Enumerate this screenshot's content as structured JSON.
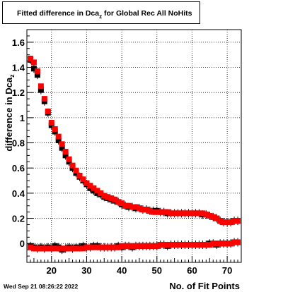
{
  "title": {
    "main": "Fitted difference in Dca",
    "sub": "z",
    "suffix": "  for Global Rec All NoHits"
  },
  "datestamp": "Wed Sep 21 08:26:22 2022",
  "chart_data": {
    "type": "scatter",
    "title": "Fitted difference in Dca_z  for Global Rec All NoHits",
    "xlabel": "No. of Fit Points",
    "ylabel": "difference in Dca_z",
    "xlim": [
      13,
      74
    ],
    "ylim": [
      -0.15,
      1.7
    ],
    "x_ticks": [
      "20",
      "30",
      "40",
      "50",
      "60",
      "70"
    ],
    "y_ticks": [
      "0",
      "0.2",
      "0.4",
      "0.6",
      "0.8",
      "1",
      "1.2",
      "1.4",
      "1.6"
    ],
    "grid": true,
    "series": [
      {
        "color": "#000000",
        "marker": "square",
        "x": [
          14,
          15,
          16,
          17,
          18,
          19,
          20,
          21,
          22,
          23,
          24,
          25,
          26,
          27,
          28,
          29,
          30,
          31,
          32,
          33,
          34,
          35,
          36,
          37,
          38,
          39,
          40,
          41,
          42,
          43,
          44,
          45,
          46,
          47,
          48,
          49,
          50,
          51,
          52,
          53,
          54,
          55,
          56,
          57,
          58,
          59,
          60,
          61,
          62,
          63,
          64,
          65,
          66,
          67,
          68,
          69,
          70,
          71,
          72,
          73
        ],
        "y": [
          1.46,
          1.39,
          1.34,
          1.22,
          1.13,
          1.04,
          0.94,
          0.89,
          0.82,
          0.76,
          0.7,
          0.65,
          0.6,
          0.56,
          0.53,
          0.5,
          0.47,
          0.44,
          0.42,
          0.4,
          0.39,
          0.37,
          0.36,
          0.35,
          0.34,
          0.33,
          0.31,
          0.3,
          0.29,
          0.29,
          0.28,
          0.28,
          0.27,
          0.27,
          0.26,
          0.26,
          0.26,
          0.25,
          0.25,
          0.24,
          0.24,
          0.24,
          0.24,
          0.24,
          0.24,
          0.24,
          0.24,
          0.24,
          0.24,
          0.23,
          0.23,
          0.22,
          0.21,
          0.2,
          0.18,
          0.17,
          0.17,
          0.17,
          0.18,
          0.18
        ]
      },
      {
        "color": "#ff0000",
        "marker": "square",
        "x": [
          14,
          15,
          16,
          17,
          18,
          19,
          20,
          21,
          22,
          23,
          24,
          25,
          26,
          27,
          28,
          29,
          30,
          31,
          32,
          33,
          34,
          35,
          36,
          37,
          38,
          39,
          40,
          41,
          42,
          43,
          44,
          45,
          46,
          47,
          48,
          49,
          50,
          51,
          52,
          53,
          54,
          55,
          56,
          57,
          58,
          59,
          60,
          61,
          62,
          63,
          64,
          65,
          66,
          67,
          68,
          69,
          70,
          71,
          72,
          73
        ],
        "y": [
          1.47,
          1.44,
          1.37,
          1.25,
          1.15,
          1.05,
          0.96,
          0.91,
          0.85,
          0.79,
          0.73,
          0.67,
          0.62,
          0.58,
          0.54,
          0.51,
          0.48,
          0.46,
          0.44,
          0.42,
          0.4,
          0.38,
          0.37,
          0.36,
          0.35,
          0.33,
          0.32,
          0.3,
          0.3,
          0.29,
          0.29,
          0.28,
          0.27,
          0.27,
          0.26,
          0.25,
          0.25,
          0.25,
          0.25,
          0.25,
          0.24,
          0.24,
          0.24,
          0.24,
          0.24,
          0.24,
          0.24,
          0.24,
          0.24,
          0.24,
          0.23,
          0.22,
          0.21,
          0.2,
          0.18,
          0.17,
          0.17,
          0.17,
          0.18,
          0.18
        ]
      },
      {
        "color": "#000000",
        "marker": "square",
        "x": [
          14,
          15,
          16,
          17,
          18,
          19,
          20,
          21,
          22,
          23,
          24,
          25,
          26,
          27,
          28,
          29,
          30,
          31,
          32,
          33,
          34,
          35,
          36,
          37,
          38,
          39,
          40,
          41,
          42,
          43,
          44,
          45,
          46,
          47,
          48,
          49,
          50,
          51,
          52,
          53,
          54,
          55,
          56,
          57,
          58,
          59,
          60,
          61,
          62,
          63,
          64,
          65,
          66,
          67,
          68,
          69,
          70,
          71,
          72,
          73
        ],
        "y": [
          -0.02,
          -0.03,
          -0.04,
          -0.03,
          -0.04,
          -0.03,
          -0.04,
          -0.02,
          -0.03,
          -0.05,
          -0.04,
          -0.03,
          -0.04,
          -0.03,
          -0.03,
          -0.02,
          -0.03,
          -0.03,
          -0.02,
          -0.02,
          -0.03,
          -0.03,
          -0.03,
          -0.03,
          -0.03,
          -0.02,
          -0.03,
          -0.02,
          -0.02,
          -0.03,
          -0.02,
          -0.02,
          -0.02,
          -0.02,
          -0.02,
          -0.02,
          -0.02,
          -0.01,
          -0.01,
          -0.02,
          -0.01,
          -0.01,
          -0.01,
          -0.01,
          -0.01,
          -0.01,
          -0.01,
          -0.01,
          -0.01,
          -0.01,
          -0.01,
          0,
          0,
          -0.01,
          0,
          0,
          0,
          0,
          0.01,
          0.01
        ]
      },
      {
        "color": "#ff0000",
        "marker": "square",
        "x": [
          14,
          15,
          16,
          17,
          18,
          19,
          20,
          21,
          22,
          23,
          24,
          25,
          26,
          27,
          28,
          29,
          30,
          31,
          32,
          33,
          34,
          35,
          36,
          37,
          38,
          39,
          40,
          41,
          42,
          43,
          44,
          45,
          46,
          47,
          48,
          49,
          50,
          51,
          52,
          53,
          54,
          55,
          56,
          57,
          58,
          59,
          60,
          61,
          62,
          63,
          64,
          65,
          66,
          67,
          68,
          69,
          70,
          71,
          72,
          73
        ],
        "y": [
          -0.03,
          -0.04,
          -0.04,
          -0.04,
          -0.04,
          -0.04,
          -0.04,
          -0.04,
          -0.04,
          -0.04,
          -0.04,
          -0.04,
          -0.04,
          -0.04,
          -0.04,
          -0.04,
          -0.03,
          -0.03,
          -0.03,
          -0.03,
          -0.03,
          -0.03,
          -0.03,
          -0.03,
          -0.03,
          -0.03,
          -0.02,
          -0.02,
          -0.02,
          -0.02,
          -0.02,
          -0.02,
          -0.02,
          -0.02,
          -0.02,
          -0.02,
          -0.02,
          -0.01,
          -0.01,
          -0.01,
          -0.01,
          -0.01,
          -0.01,
          -0.01,
          -0.01,
          -0.01,
          -0.01,
          -0.01,
          -0.01,
          -0.01,
          -0.01,
          -0.01,
          0,
          0,
          0,
          0,
          0,
          0,
          0.01,
          0.01
        ]
      }
    ]
  }
}
